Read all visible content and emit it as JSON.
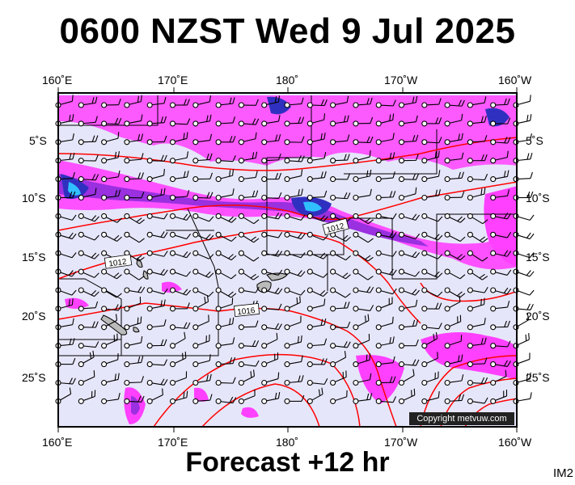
{
  "title": "0600 NZST Wed 9 Jul 2025",
  "subtitle": "Forecast +12 hr",
  "panel_code": "IM2",
  "copyright": "Copyright metvuw.com",
  "longitude_labels": [
    "160˚E",
    "170˚E",
    "180˚",
    "170˚W",
    "160˚W"
  ],
  "latitude_labels": [
    "5˚S",
    "10˚S",
    "15˚S",
    "20˚S",
    "25˚S"
  ],
  "isobar_labels": [
    "1012",
    "1012",
    "1016"
  ],
  "colors": {
    "ocean": "#e6e6fa",
    "rain_light": "#ff40ff",
    "rain_moderate": "#9a30e0",
    "rain_heavy": "#3030c0",
    "rain_very_heavy": "#30c0ff",
    "isobar": "#ff0000",
    "land": "#bbbbbb",
    "boundary": "#000000"
  }
}
